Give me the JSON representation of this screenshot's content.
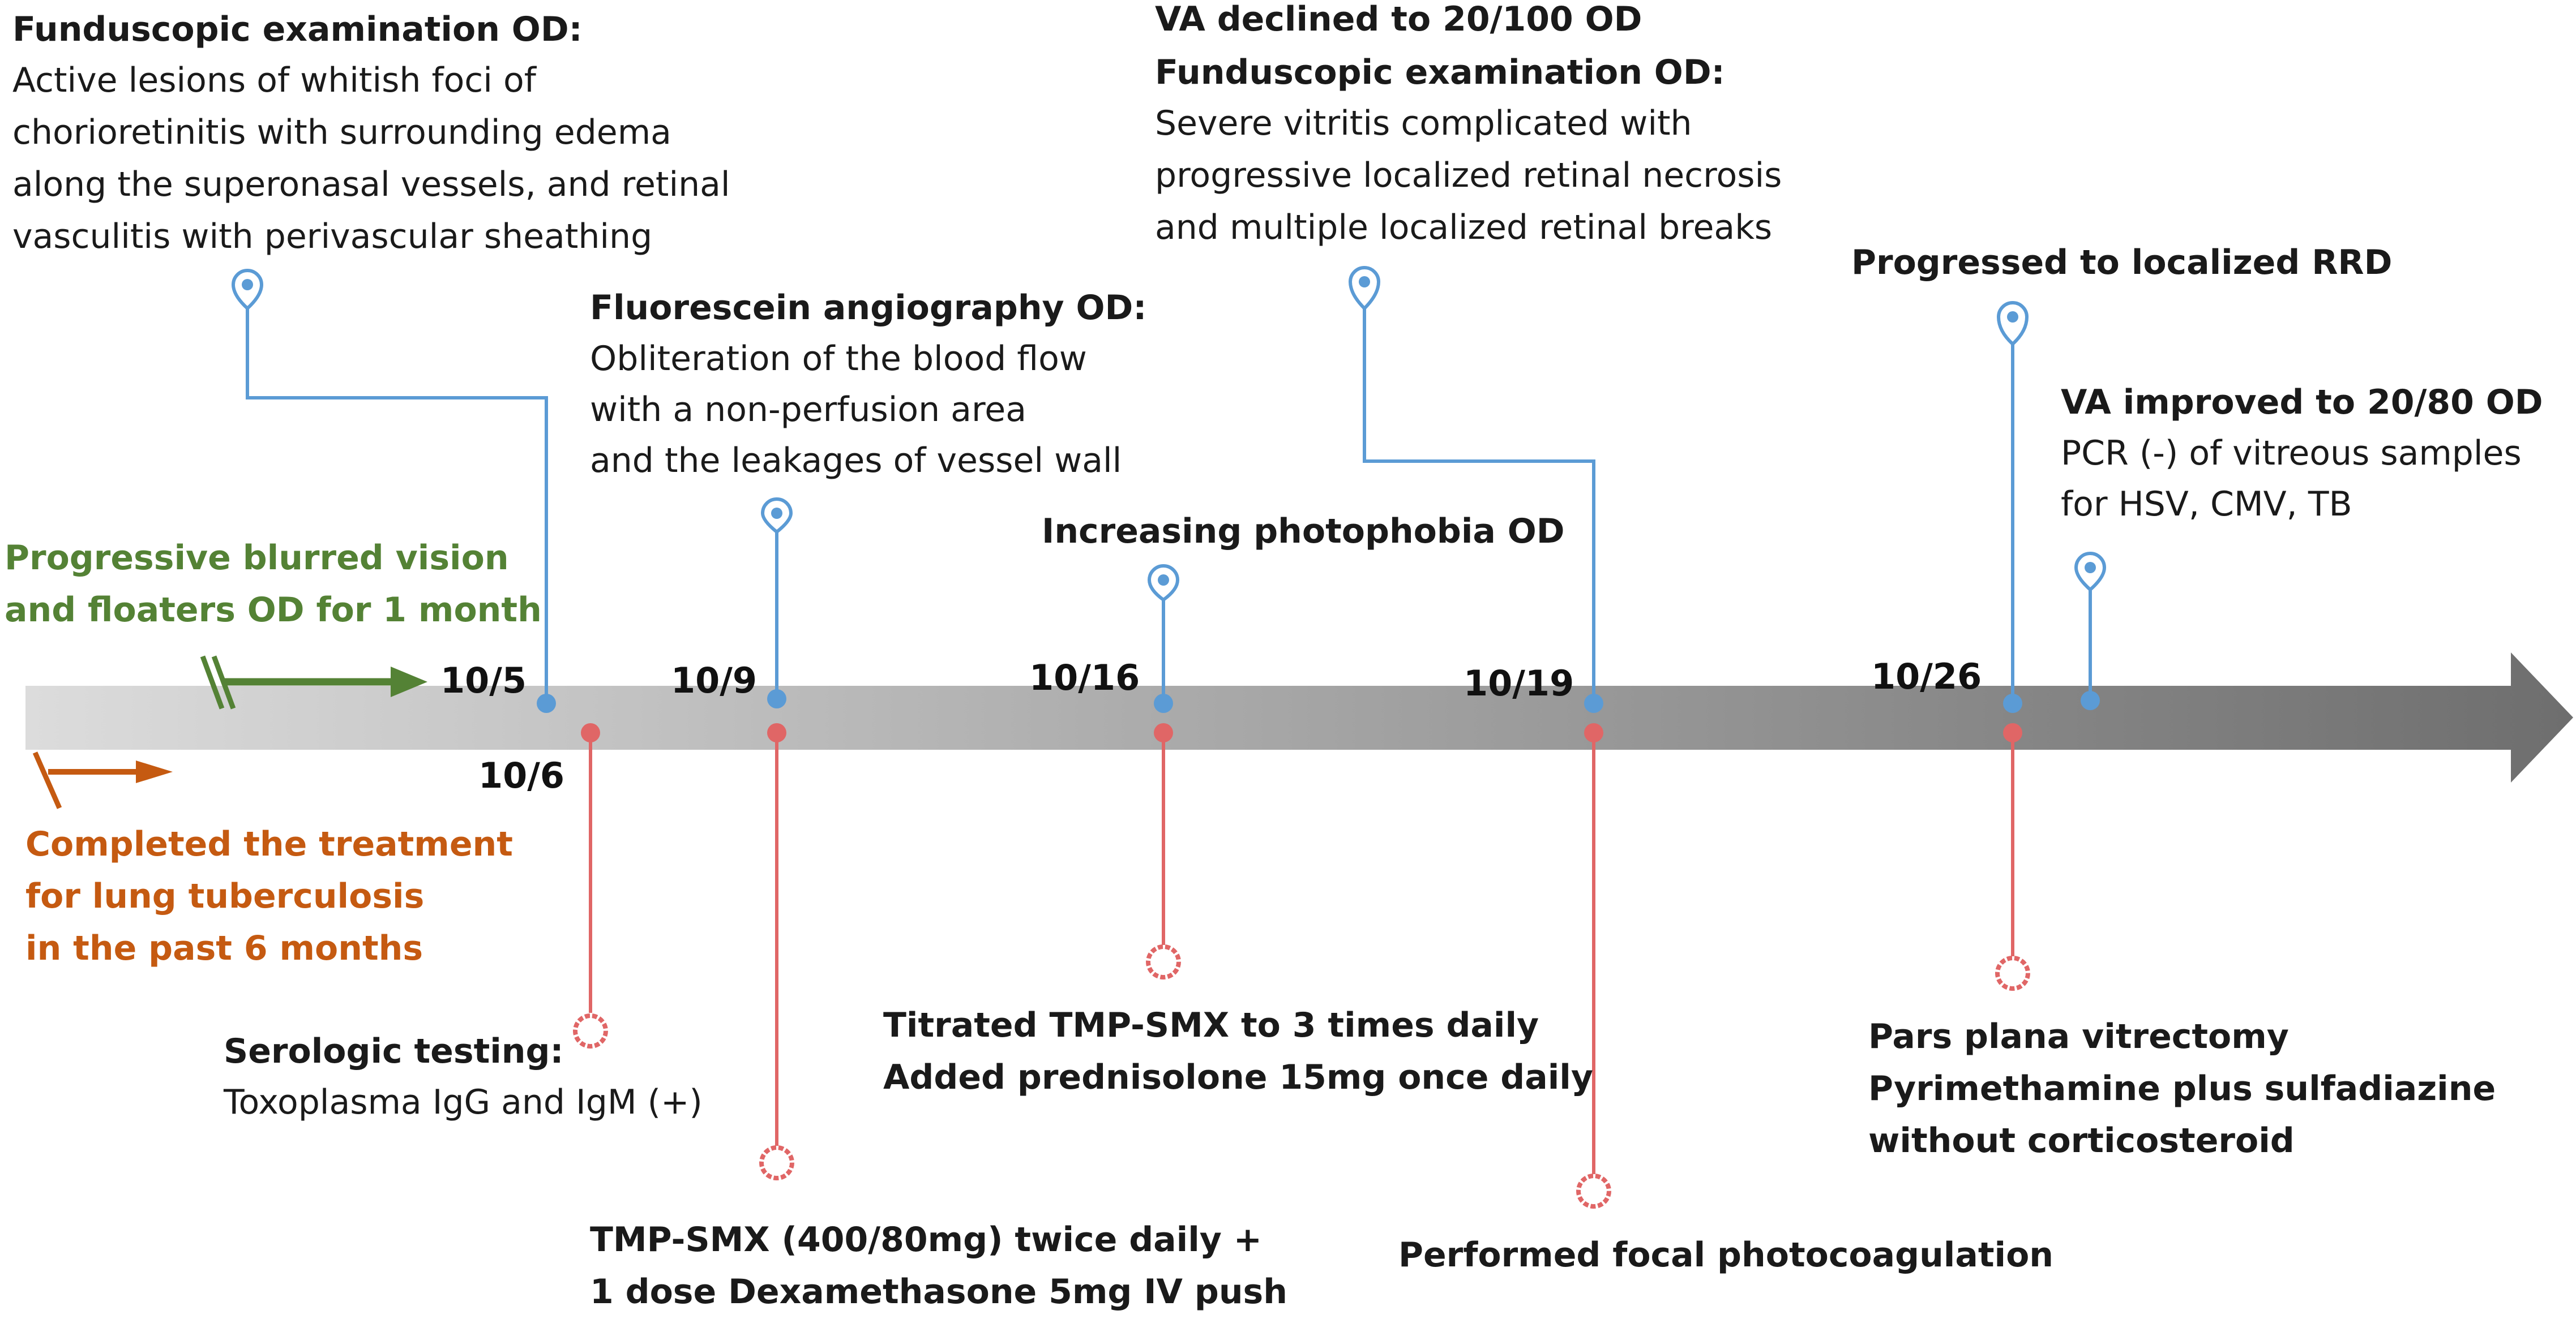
{
  "colors": {
    "event_blue": "#5b9bd5",
    "event_red": "#e06666",
    "history_green": "#548235",
    "history_orange": "#c55a11",
    "timeline_light": "#d9d9d9",
    "timeline_dark": "#6b6b6b"
  },
  "history": {
    "symptoms": [
      "Progressive blurred vision",
      "and floaters OD for 1 month"
    ],
    "tuberculosis": [
      "Completed the treatment",
      "for lung tuberculosis",
      "in the past 6 months"
    ]
  },
  "dates": {
    "d1": "10/5",
    "d2": "10/6",
    "d3": "10/9",
    "d4": "10/16",
    "d5": "10/19",
    "d6": "10/26"
  },
  "findings": {
    "fundus_first": {
      "title": "Funduscopic examination OD:",
      "lines": [
        "Active lesions of whitish foci of",
        "chorioretinitis with surrounding edema",
        "along the superonasal vessels, and retinal",
        "vasculitis with perivascular sheathing"
      ]
    },
    "fluorescein": {
      "title": "Fluorescein angiography OD:",
      "lines": [
        "Obliteration of the blood flow",
        "with a non-perfusion area",
        "and the leakages of vessel wall"
      ]
    },
    "photophobia": {
      "title": "Increasing photophobia OD"
    },
    "va_declined": {
      "title1": "VA declined to 20/100 OD",
      "title2": "Funduscopic examination OD:",
      "lines": [
        "Severe vitritis complicated with",
        "progressive localized retinal necrosis",
        "and multiple localized retinal breaks"
      ]
    },
    "rrd": {
      "title": "Progressed to localized RRD"
    },
    "va_improved": {
      "title": "VA improved to 20/80 OD",
      "lines": [
        "PCR (-) of vitreous samples",
        "for HSV, CMV, TB"
      ]
    }
  },
  "treatments": {
    "serologic": {
      "title": "Serologic testing:",
      "lines": [
        "Toxoplasma IgG and IgM (+)"
      ]
    },
    "tmp_smx": {
      "lines": [
        "TMP-SMX (400/80mg) twice daily +",
        "1 dose Dexamethasone 5mg IV push"
      ]
    },
    "titrated": {
      "lines": [
        "Titrated TMP-SMX to 3 times daily",
        "Added prednisolone 15mg once daily"
      ]
    },
    "photocoag": {
      "lines": [
        "Performed focal photocoagulation"
      ]
    },
    "vitrectomy": {
      "lines": [
        "Pars plana vitrectomy",
        "Pyrimethamine plus sulfadiazine",
        "without corticosteroid"
      ]
    }
  }
}
